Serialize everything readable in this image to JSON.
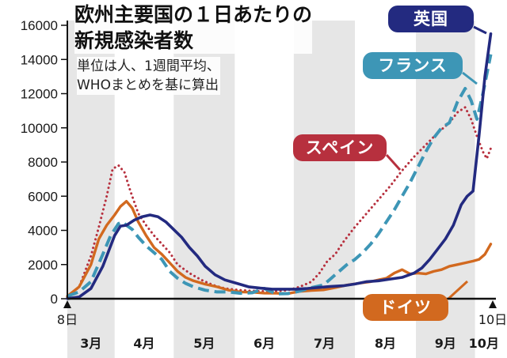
{
  "title": {
    "line1": "欧州主要国の１日あたりの",
    "line2": "新規感染者数"
  },
  "subtitle": {
    "line1": "単位は人、1週間平均、",
    "line2": "WHOまとめを基に算出"
  },
  "colors": {
    "uk": "#232a80",
    "france": "#3d96b6",
    "spain": "#b7303e",
    "germany": "#d2691f",
    "band": "#e6e6e6",
    "axis": "#111111"
  },
  "chart_data": {
    "type": "line",
    "title": "欧州主要国の１日あたりの新規感染者数",
    "ylabel": "",
    "xlabel": "",
    "ylim": [
      0,
      16000
    ],
    "yticks": [
      "0",
      "2000",
      "4000",
      "6000",
      "8000",
      "10000",
      "12000",
      "14000",
      "16000"
    ],
    "ytick_values": [
      0,
      2000,
      4000,
      6000,
      8000,
      10000,
      12000,
      14000,
      16000
    ],
    "x_unit": "day index from Mar 8 (0) to Oct 10 (216)",
    "xlim": [
      0,
      216
    ],
    "start_label": "8日",
    "end_label": "10日",
    "months": [
      {
        "label": "3月",
        "start": 0,
        "end": 24
      },
      {
        "label": "4月",
        "start": 24,
        "end": 54
      },
      {
        "label": "5月",
        "start": 54,
        "end": 85
      },
      {
        "label": "6月",
        "start": 85,
        "end": 115
      },
      {
        "label": "7月",
        "start": 115,
        "end": 146
      },
      {
        "label": "8月",
        "start": 146,
        "end": 177
      },
      {
        "label": "9月",
        "start": 177,
        "end": 207
      },
      {
        "label": "10月",
        "start": 207,
        "end": 216
      }
    ],
    "series": [
      {
        "name": "英国",
        "key": "uk",
        "style": "solid",
        "x": [
          0,
          6,
          12,
          18,
          24,
          27,
          30,
          34,
          38,
          42,
          46,
          50,
          54,
          58,
          62,
          66,
          70,
          75,
          80,
          86,
          92,
          98,
          104,
          110,
          116,
          122,
          128,
          134,
          140,
          146,
          152,
          158,
          164,
          170,
          176,
          180,
          184,
          188,
          192,
          196,
          200,
          203,
          206,
          209,
          212,
          215
        ],
        "values": [
          10,
          100,
          600,
          1900,
          3700,
          4250,
          4300,
          4600,
          4800,
          4900,
          4800,
          4500,
          4050,
          3600,
          3000,
          2500,
          1900,
          1400,
          1100,
          900,
          700,
          620,
          560,
          560,
          560,
          600,
          660,
          720,
          760,
          860,
          1000,
          1050,
          1150,
          1250,
          1500,
          1800,
          2300,
          2900,
          3500,
          4300,
          5500,
          6000,
          6300,
          9500,
          13000,
          15500
        ]
      },
      {
        "name": "フランス",
        "key": "france",
        "style": "dashed",
        "x": [
          0,
          6,
          12,
          18,
          22,
          26,
          28,
          30,
          33,
          36,
          40,
          44,
          48,
          52,
          56,
          60,
          64,
          70,
          76,
          82,
          88,
          94,
          100,
          106,
          112,
          118,
          124,
          130,
          134,
          138,
          142,
          146,
          150,
          154,
          158,
          162,
          166,
          170,
          174,
          178,
          182,
          186,
          190,
          194,
          198,
          202,
          205,
          208,
          211,
          215
        ],
        "values": [
          150,
          400,
          1000,
          2600,
          3700,
          4400,
          4500,
          4300,
          4050,
          3600,
          3100,
          2700,
          2300,
          1600,
          1200,
          900,
          700,
          500,
          400,
          400,
          320,
          350,
          600,
          280,
          300,
          450,
          650,
          800,
          1200,
          1600,
          2000,
          2300,
          2700,
          3200,
          3800,
          4500,
          5200,
          6000,
          6800,
          7700,
          8600,
          9400,
          10000,
          10300,
          11500,
          12300,
          11600,
          10500,
          12000,
          14300
        ]
      },
      {
        "name": "スペイン",
        "key": "spain",
        "style": "dotted",
        "x": [
          0,
          6,
          12,
          16,
          20,
          23,
          26,
          29,
          32,
          36,
          40,
          44,
          48,
          52,
          56,
          62,
          68,
          74,
          80,
          88,
          96,
          104,
          112,
          118,
          124,
          128,
          132,
          136,
          140,
          146,
          152,
          158,
          164,
          170,
          176,
          182,
          188,
          194,
          198,
          202,
          205,
          208,
          211,
          213,
          215
        ],
        "values": [
          50,
          700,
          2500,
          4200,
          6000,
          7600,
          7800,
          7400,
          6300,
          5000,
          4300,
          3700,
          3200,
          2700,
          2000,
          1500,
          1100,
          800,
          600,
          500,
          450,
          430,
          500,
          700,
          1000,
          1500,
          2200,
          2600,
          3300,
          4200,
          5000,
          5800,
          6600,
          7500,
          8300,
          9000,
          9700,
          10300,
          10900,
          11200,
          10500,
          9500,
          8600,
          8200,
          8800
        ]
      },
      {
        "name": "ドイツ",
        "key": "germany",
        "style": "solid",
        "x": [
          0,
          6,
          12,
          16,
          20,
          24,
          27,
          30,
          33,
          36,
          40,
          44,
          48,
          52,
          56,
          60,
          64,
          70,
          76,
          82,
          88,
          94,
          100,
          106,
          112,
          118,
          124,
          130,
          136,
          142,
          148,
          154,
          158,
          162,
          166,
          170,
          174,
          178,
          182,
          186,
          190,
          194,
          198,
          202,
          206,
          209,
          212,
          215
        ],
        "values": [
          150,
          700,
          2000,
          3500,
          4300,
          4900,
          5400,
          5700,
          5300,
          4500,
          3700,
          3000,
          2600,
          2100,
          1600,
          1250,
          1050,
          850,
          700,
          500,
          400,
          380,
          330,
          320,
          300,
          430,
          480,
          520,
          650,
          800,
          900,
          1000,
          1100,
          1200,
          1500,
          1700,
          1450,
          1500,
          1450,
          1600,
          1700,
          1900,
          2000,
          2100,
          2200,
          2300,
          2600,
          3200
        ]
      }
    ]
  }
}
